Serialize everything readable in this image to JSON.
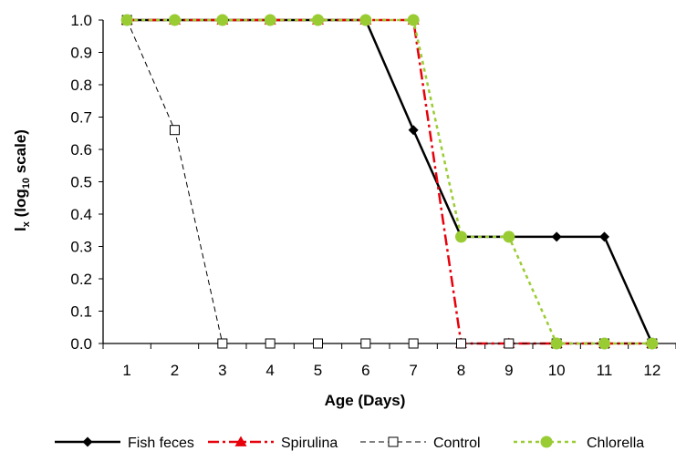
{
  "chart_data": {
    "type": "line",
    "title": "",
    "xlabel": "Age (Days)",
    "ylabel_main": "l",
    "ylabel_sub": "x",
    "ylabel_rest_1": " (log",
    "ylabel_sub2": "10",
    "ylabel_rest_2": " scale)",
    "x": [
      1,
      2,
      3,
      4,
      5,
      6,
      7,
      8,
      9,
      10,
      11,
      12
    ],
    "xlim": [
      0.5,
      12.5
    ],
    "ylim": [
      0,
      1
    ],
    "yticks": [
      "0.0",
      "0.1",
      "0.2",
      "0.3",
      "0.4",
      "0.5",
      "0.6",
      "0.7",
      "0.8",
      "0.9",
      "1.0"
    ],
    "legend_position": "bottom",
    "series": [
      {
        "name": "Fish feces",
        "color": "#000000",
        "line": "solid",
        "marker": "diamond",
        "values": [
          1.0,
          1.0,
          1.0,
          1.0,
          1.0,
          1.0,
          0.66,
          0.33,
          0.33,
          0.33,
          0.33,
          0.0
        ]
      },
      {
        "name": "Spirulina",
        "color": "#e8000b",
        "line": "dashdot",
        "marker": "triangle",
        "values": [
          1.0,
          1.0,
          1.0,
          1.0,
          1.0,
          1.0,
          1.0,
          0.0,
          0.0,
          0.0,
          0.0,
          0.0
        ]
      },
      {
        "name": "Control",
        "color": "#000000",
        "line": "dashed",
        "marker": "square-open",
        "values": [
          1.0,
          0.66,
          0.0,
          0.0,
          0.0,
          0.0,
          0.0,
          0.0,
          0.0,
          0.0,
          0.0,
          0.0
        ]
      },
      {
        "name": "Chlorella",
        "color": "#99cc33",
        "line": "dotted",
        "marker": "circle",
        "values": [
          1.0,
          1.0,
          1.0,
          1.0,
          1.0,
          1.0,
          1.0,
          0.33,
          0.33,
          0.0,
          0.0,
          0.0
        ]
      }
    ]
  }
}
